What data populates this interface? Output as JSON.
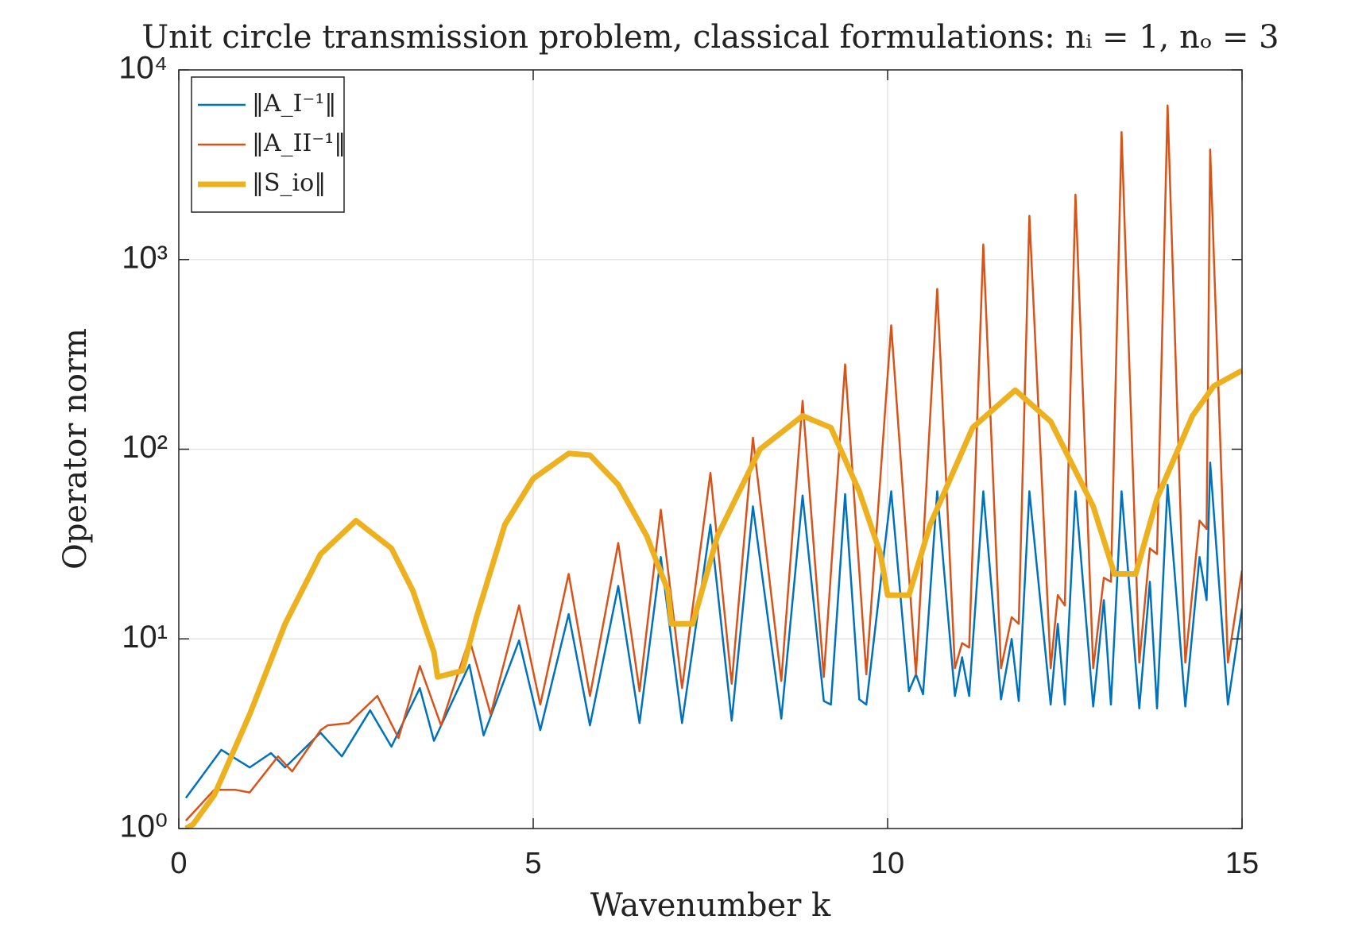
{
  "chart_data": {
    "type": "line",
    "title": "Unit circle transmission problem, classical formulations: nᵢ = 1, nₒ = 3",
    "xlabel": "Wavenumber k",
    "ylabel": "Operator norm",
    "xlim": [
      0,
      15
    ],
    "xticks": [
      0,
      5,
      10,
      15
    ],
    "ylim": [
      1,
      10000
    ],
    "yscale": "log",
    "yticks": [
      {
        "value": 1,
        "label": "10⁰"
      },
      {
        "value": 10,
        "label": "10¹"
      },
      {
        "value": 100,
        "label": "10²"
      },
      {
        "value": 1000,
        "label": "10³"
      },
      {
        "value": 10000,
        "label": "10⁴"
      }
    ],
    "grid": true,
    "legend": "upper left",
    "series": [
      {
        "name": "‖A_I⁻¹‖",
        "color": "#0072bd",
        "width": 2.5,
        "x": [
          0.1,
          0.6,
          1.0,
          1.3,
          1.5,
          2.0,
          2.3,
          2.7,
          3.0,
          3.4,
          3.6,
          4.1,
          4.3,
          4.8,
          5.1,
          5.5,
          5.8,
          6.2,
          6.5,
          6.8,
          7.1,
          7.5,
          7.8,
          8.1,
          8.5,
          8.8,
          9.1,
          9.2,
          9.4,
          9.6,
          9.7,
          10.05,
          10.3,
          10.4,
          10.5,
          10.7,
          10.95,
          11.05,
          11.15,
          11.35,
          11.6,
          11.75,
          11.85,
          12.0,
          12.3,
          12.4,
          12.5,
          12.65,
          12.9,
          13.05,
          13.15,
          13.3,
          13.55,
          13.7,
          13.8,
          13.95,
          14.2,
          14.4,
          14.5,
          14.55,
          14.8,
          15.0
        ],
        "values": [
          1.45,
          2.6,
          2.1,
          2.5,
          2.1,
          3.2,
          2.4,
          4.2,
          2.7,
          5.5,
          2.9,
          7.3,
          3.1,
          9.8,
          3.3,
          13.5,
          3.5,
          19,
          3.6,
          27,
          3.6,
          40,
          3.7,
          50,
          3.8,
          57,
          4.7,
          4.5,
          58,
          4.8,
          4.5,
          60,
          5.3,
          6.5,
          5.1,
          60,
          5,
          8,
          5,
          60,
          4.8,
          10,
          4.7,
          60,
          4.5,
          12,
          4.5,
          60,
          4.4,
          16,
          4.5,
          60,
          4.3,
          20,
          4.3,
          65,
          4.4,
          27,
          16,
          85,
          4.5,
          14.5
        ]
      },
      {
        "name": "‖A_II⁻¹‖",
        "color": "#d95319",
        "width": 2.5,
        "x": [
          0.1,
          0.5,
          0.8,
          1.0,
          1.4,
          1.6,
          2.0,
          2.1,
          2.4,
          2.8,
          3.1,
          3.4,
          3.7,
          4.1,
          4.4,
          4.8,
          5.1,
          5.5,
          5.8,
          6.2,
          6.5,
          6.8,
          7.1,
          7.5,
          7.8,
          8.1,
          8.5,
          8.8,
          9.1,
          9.4,
          9.7,
          10.05,
          10.4,
          10.7,
          10.95,
          11.05,
          11.15,
          11.35,
          11.6,
          11.75,
          11.85,
          12.0,
          12.3,
          12.4,
          12.5,
          12.65,
          12.9,
          13.05,
          13.15,
          13.3,
          13.55,
          13.7,
          13.8,
          13.95,
          14.2,
          14.4,
          14.5,
          14.55,
          14.8,
          15.0
        ],
        "values": [
          1.1,
          1.6,
          1.6,
          1.55,
          2.4,
          2.0,
          3.3,
          3.5,
          3.6,
          5.0,
          3.0,
          7.2,
          3.5,
          10,
          4.0,
          15,
          4.5,
          22,
          5.0,
          32,
          5.3,
          48,
          5.5,
          75,
          5.8,
          115,
          6.0,
          180,
          6.3,
          280,
          6.5,
          450,
          6.5,
          700,
          7,
          9.5,
          9,
          1200,
          7,
          13,
          12,
          1700,
          7,
          17,
          15,
          2200,
          7,
          21,
          20,
          4700,
          7.5,
          30,
          28,
          6500,
          7.5,
          42,
          38,
          3800,
          7.5,
          23
        ]
      },
      {
        "name": "‖S_io‖",
        "color": "#edb120",
        "width": 7,
        "x": [
          0.1,
          0.2,
          0.5,
          1.0,
          1.5,
          2.0,
          2.5,
          3.0,
          3.3,
          3.6,
          3.65,
          3.8,
          4.0,
          4.2,
          4.6,
          5.0,
          5.5,
          5.8,
          6.2,
          6.6,
          6.9,
          6.95,
          7.1,
          7.25,
          7.6,
          8.2,
          8.8,
          9.2,
          9.6,
          9.9,
          10.0,
          10.3,
          10.6,
          11.2,
          11.8,
          12.3,
          12.9,
          13.2,
          13.5,
          13.8,
          14.3,
          14.6,
          15.0
        ],
        "values": [
          1.0,
          1.05,
          1.5,
          4,
          12,
          28,
          42,
          30,
          18,
          8.5,
          6.3,
          6.5,
          6.8,
          13,
          40,
          70,
          95,
          93,
          65,
          35,
          18,
          12,
          12,
          12,
          35,
          100,
          150,
          130,
          60,
          28,
          17,
          17,
          40,
          130,
          205,
          140,
          50,
          22,
          22,
          55,
          150,
          215,
          260
        ]
      }
    ]
  }
}
